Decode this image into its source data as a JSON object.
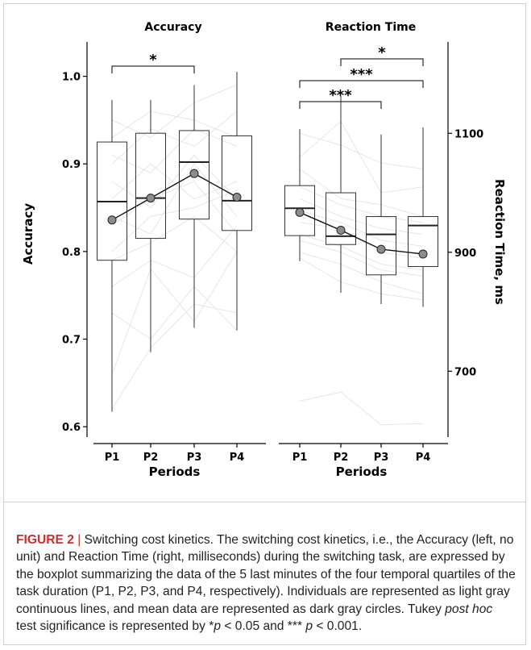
{
  "chart_data": [
    {
      "type": "box",
      "title": "Accuracy",
      "ylabel": "Accuracy",
      "xlabel": "Periods",
      "categories": [
        "P1",
        "P2",
        "P3",
        "P4"
      ],
      "ylim": [
        0.59,
        1.03
      ],
      "yticks": [
        0.6,
        0.7,
        0.8,
        0.9,
        1.0
      ],
      "ytick_labels": [
        "0.6",
        "0.7",
        "0.8",
        "0.9",
        "1.0"
      ],
      "boxes": [
        {
          "min": 0.617,
          "q1": 0.79,
          "median": 0.857,
          "q3": 0.925,
          "max": 0.973
        },
        {
          "min": 0.685,
          "q1": 0.815,
          "median": 0.861,
          "q3": 0.935,
          "max": 0.973
        },
        {
          "min": 0.713,
          "q1": 0.837,
          "median": 0.902,
          "q3": 0.938,
          "max": 0.99
        },
        {
          "min": 0.71,
          "q1": 0.824,
          "median": 0.858,
          "q3": 0.932,
          "max": 1.005
        }
      ],
      "means": [
        0.836,
        0.861,
        0.889,
        0.862
      ],
      "significance": [
        {
          "from": "P1",
          "to": "P3",
          "label": "*"
        }
      ]
    },
    {
      "type": "box",
      "title": "Reaction Time",
      "ylabel": "Reaction Time, ms",
      "xlabel": "Periods",
      "categories": [
        "P1",
        "P2",
        "P3",
        "P4"
      ],
      "ylim": [
        592,
        1240
      ],
      "yticks": [
        700,
        900,
        1100
      ],
      "ytick_labels": [
        "700",
        "900",
        "1100"
      ],
      "boxes": [
        {
          "min": 885,
          "q1": 928,
          "median": 974,
          "q3": 1012,
          "max": 1107
        },
        {
          "min": 832,
          "q1": 913,
          "median": 927,
          "q3": 1000,
          "max": 1163
        },
        {
          "min": 813,
          "q1": 862,
          "median": 930,
          "q3": 960,
          "max": 1098
        },
        {
          "min": 808,
          "q1": 876,
          "median": 945,
          "q3": 960,
          "max": 1110
        }
      ],
      "means": [
        967,
        937,
        905,
        897
      ],
      "significance": [
        {
          "from": "P1",
          "to": "P3",
          "label": "***"
        },
        {
          "from": "P1",
          "to": "P4",
          "label": "***"
        },
        {
          "from": "P2",
          "to": "P4",
          "label": "*"
        }
      ]
    }
  ],
  "caption": {
    "figure_label": "FIGURE 2",
    "separator": "|",
    "text_1": " Switching cost kinetics. The switching cost kinetics, i.e., the Accuracy (left, no unit) and Reaction Time (right, milliseconds) during the switching task, are expressed by the boxplot summarizing the data of the 5 last minutes of the four temporal quartiles of the task duration (P1, P2, P3, and P4, respectively). Individuals are represented as light gray continuous lines, and mean data are represented as dark gray circles. Tukey ",
    "italic_1": "post hoc",
    "text_2": " test significance is represented by *",
    "p_1": "p",
    "text_3": " < 0.05 and *** ",
    "p_2": "p",
    "text_4": " < 0.001."
  }
}
